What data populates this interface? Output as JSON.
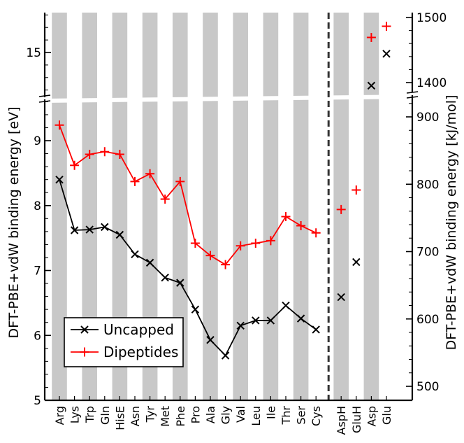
{
  "chart_data": {
    "type": "line",
    "ylabel_left": "DFT-PBE+vdW binding energy [eV]",
    "ylabel_right": "DFT-PBE+vdW binding energy [kJ/mol]",
    "y_axis_break": true,
    "grid": false,
    "legend_position": "lower-left",
    "categories": [
      "Arg",
      "Lys",
      "Trp",
      "Gln",
      "HisE",
      "Asn",
      "Tyr",
      "Met",
      "Phe",
      "Pro",
      "Ala",
      "Gly",
      "Val",
      "Leu",
      "Ile",
      "Thr",
      "Ser",
      "Cys",
      "AspH",
      "GluH",
      "Asp",
      "Glu"
    ],
    "left_ticks": [
      "5",
      "6",
      "7",
      "8",
      "9",
      "15"
    ],
    "right_ticks": [
      "500",
      "600",
      "700",
      "800",
      "900",
      "1400",
      "1500"
    ],
    "series": [
      {
        "name": "Uncapped",
        "color": "#000000",
        "marker": "x",
        "values": [
          8.4,
          7.62,
          7.63,
          7.67,
          7.55,
          7.25,
          7.12,
          6.89,
          6.81,
          6.4,
          5.93,
          5.69,
          6.15,
          6.23,
          6.23,
          6.46,
          6.26,
          6.09,
          6.59,
          7.13,
          14.47,
          14.98
        ]
      },
      {
        "name": "Dipeptides",
        "color": "#ff0000",
        "marker": "+",
        "values": [
          9.24,
          8.62,
          8.79,
          8.83,
          8.79,
          8.37,
          8.49,
          8.1,
          8.37,
          7.42,
          7.23,
          7.09,
          7.38,
          7.42,
          7.46,
          7.83,
          7.69,
          7.58,
          7.94,
          8.24,
          15.24,
          15.42
        ]
      }
    ],
    "connected_through": "Cys"
  }
}
